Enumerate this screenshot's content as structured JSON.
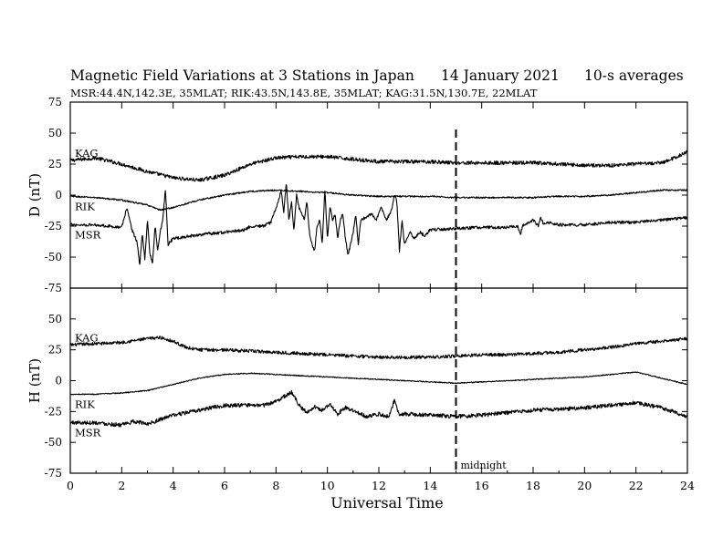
{
  "header": {
    "title": "Magnetic Field Variations at 3 Stations in Japan",
    "date": "14 January 2021",
    "averaging": "10-s averages",
    "stations": "MSR:44.4N,142.3E, 35MLAT;  RIK:43.5N,143.8E, 35MLAT;  KAG:31.5N,130.7E, 22MLAT"
  },
  "chart_data": {
    "type": "line",
    "xlabel": "Universal Time",
    "xlim": [
      0,
      24
    ],
    "x_ticks": [
      0,
      2,
      4,
      6,
      8,
      10,
      12,
      14,
      16,
      18,
      20,
      22,
      24
    ],
    "marker": {
      "x": 15,
      "label": "midnight",
      "style": "dashed"
    },
    "panels": [
      {
        "id": "D",
        "ylabel": "D (nT)",
        "ylim": [
          -75,
          75
        ],
        "y_ticks": [
          75,
          50,
          25,
          0,
          -25,
          -50,
          -75
        ],
        "series": [
          {
            "name": "KAG",
            "noise": 1.5,
            "x": [
              0,
              1,
              2,
              3,
              4,
              5,
              6,
              7,
              8,
              9,
              10,
              11,
              12,
              13,
              14,
              15,
              16,
              17,
              18,
              19,
              20,
              21,
              22,
              23,
              23.5,
              24
            ],
            "y": [
              28,
              30,
              25,
              19,
              14,
              12,
              16,
              25,
              30,
              31,
              31,
              29,
              27,
              27,
              27,
              26,
              26,
              26,
              26,
              25,
              24,
              24,
              25,
              26,
              30,
              35
            ]
          },
          {
            "name": "RIK",
            "noise": 0.6,
            "x": [
              0,
              1,
              2,
              3,
              3.5,
              4,
              5,
              6,
              7,
              8,
              9,
              10,
              11,
              12,
              13,
              14,
              15,
              16,
              17,
              18,
              19,
              20,
              21,
              22,
              23,
              24
            ],
            "y": [
              -1,
              -2,
              -4,
              -8,
              -12,
              -10,
              -4,
              0,
              3,
              4,
              3,
              2,
              0,
              -1,
              -1,
              -1,
              -2,
              -2,
              -2,
              -2,
              -1,
              -1,
              0,
              2,
              4,
              4
            ]
          },
          {
            "name": "MSR",
            "noise": 1.2,
            "x": [
              0,
              1,
              1.5,
              2,
              2.2,
              2.4,
              2.6,
              2.7,
              2.8,
              2.9,
              3.0,
              3.1,
              3.2,
              3.3,
              3.4,
              3.5,
              3.6,
              3.7,
              3.8,
              4,
              5,
              6,
              6.8,
              7,
              7.5,
              7.8,
              8.0,
              8.1,
              8.2,
              8.3,
              8.4,
              8.5,
              8.6,
              8.7,
              8.8,
              8.9,
              9.0,
              9.1,
              9.2,
              9.3,
              9.4,
              9.5,
              9.6,
              9.7,
              9.8,
              9.9,
              10.0,
              10.1,
              10.2,
              10.3,
              10.4,
              10.5,
              10.6,
              10.7,
              10.8,
              10.9,
              11.0,
              11.1,
              11.2,
              11.3,
              11.5,
              11.7,
              11.9,
              12.1,
              12.3,
              12.5,
              12.6,
              12.7,
              12.8,
              12.9,
              13.0,
              13.2,
              13.4,
              13.6,
              13.8,
              14,
              15,
              16,
              17,
              17.4,
              17.5,
              17.6,
              17.8,
              18.0,
              18.2,
              18.3,
              18.4,
              18.6,
              19,
              20,
              21,
              22,
              23,
              24
            ],
            "y": [
              -24,
              -24,
              -25,
              -26,
              -10,
              -28,
              -38,
              -57,
              -30,
              -52,
              -20,
              -48,
              -55,
              -25,
              -45,
              -30,
              -20,
              5,
              -40,
              -35,
              -32,
              -30,
              -28,
              -25,
              -25,
              -22,
              -10,
              -5,
              5,
              -15,
              10,
              -20,
              -5,
              -28,
              0,
              -10,
              -15,
              -20,
              -5,
              -30,
              -40,
              -45,
              -25,
              -20,
              -40,
              5,
              -35,
              -10,
              -20,
              -15,
              -35,
              -20,
              -15,
              -35,
              -48,
              -40,
              -30,
              -15,
              -40,
              -20,
              -18,
              -15,
              -20,
              -10,
              -20,
              -12,
              0,
              -5,
              -45,
              -20,
              -40,
              -30,
              -35,
              -30,
              -33,
              -28,
              -27,
              -26,
              -26,
              -25,
              -32,
              -25,
              -22,
              -20,
              -25,
              -18,
              -23,
              -22,
              -24,
              -24,
              -22,
              -22,
              -20,
              -18
            ]
          }
        ]
      },
      {
        "id": "H",
        "ylabel": "H (nT)",
        "ylim": [
          -75,
          75
        ],
        "y_ticks": [
          75,
          50,
          25,
          0,
          -25,
          -50,
          -75
        ],
        "series": [
          {
            "name": "KAG",
            "noise": 1.3,
            "x": [
              0,
              1,
              2,
              3,
              3.5,
              4,
              4.5,
              5,
              6,
              7,
              8,
              9,
              10,
              11,
              12,
              13,
              14,
              15,
              16,
              17,
              18,
              19,
              20,
              21,
              22,
              23,
              24
            ],
            "y": [
              29,
              30,
              31,
              34,
              35,
              32,
              27,
              25,
              25,
              24,
              23,
              22,
              21,
              20,
              19,
              19,
              19,
              20,
              21,
              21,
              22,
              23,
              25,
              27,
              30,
              32,
              34
            ]
          },
          {
            "name": "RIK",
            "noise": 0.4,
            "x": [
              0,
              1,
              2,
              3,
              4,
              5,
              6,
              7,
              8,
              9,
              10,
              11,
              12,
              13,
              14,
              15,
              16,
              17,
              18,
              19,
              20,
              21,
              22,
              23,
              24
            ],
            "y": [
              -11,
              -11,
              -10,
              -8,
              -3,
              2,
              5,
              6,
              5,
              4,
              3,
              2,
              1,
              0,
              -1,
              -2,
              -1,
              0,
              1,
              2,
              3,
              5,
              7,
              2,
              -3
            ]
          },
          {
            "name": "MSR",
            "noise": 1.6,
            "x": [
              0,
              1,
              2,
              2.5,
              3,
              4,
              5,
              6,
              7,
              7.5,
              8,
              8.3,
              8.6,
              8.9,
              9.2,
              9.5,
              9.8,
              10.1,
              10.4,
              10.7,
              11,
              11.5,
              12,
              12.4,
              12.6,
              12.8,
              13,
              14,
              15,
              16,
              17,
              18,
              19,
              20,
              21,
              22,
              23,
              24
            ],
            "y": [
              -34,
              -34,
              -36,
              -33,
              -35,
              -28,
              -24,
              -20,
              -20,
              -20,
              -17,
              -13,
              -9,
              -20,
              -26,
              -21,
              -24,
              -19,
              -27,
              -22,
              -24,
              -29,
              -27,
              -29,
              -16,
              -28,
              -27,
              -28,
              -29,
              -28,
              -26,
              -24,
              -23,
              -22,
              -20,
              -18,
              -22,
              -29
            ]
          }
        ]
      }
    ]
  }
}
